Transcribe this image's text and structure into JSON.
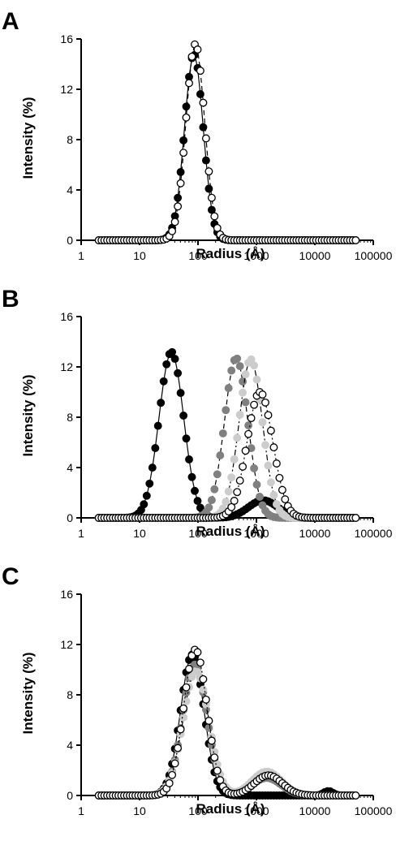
{
  "figure": {
    "panels": [
      "A",
      "B",
      "C"
    ]
  },
  "chart_data": [
    {
      "panel": "A",
      "type": "line",
      "xlabel": "Radius (Å)",
      "ylabel": "Intensity (%)",
      "xscale": "log",
      "xlim": [
        1,
        100000
      ],
      "ylim": [
        0,
        16
      ],
      "xticks": [
        "1",
        "10",
        "100",
        "1000",
        "10000",
        "100000"
      ],
      "yticks": [
        "0",
        "4",
        "8",
        "12",
        "16"
      ],
      "series": [
        {
          "style": "black filled circles, solid line",
          "color": "#000000",
          "peaks": [
            {
              "center": 85,
              "height": 14.8,
              "width": 0.16
            }
          ]
        },
        {
          "style": "open circles, dashed line",
          "color": "#ffffff",
          "peaks": [
            {
              "center": 90,
              "height": 15.6,
              "width": 0.16
            }
          ]
        }
      ]
    },
    {
      "panel": "B",
      "type": "line",
      "xlabel": "Radius (Å)",
      "ylabel": "Intensity (%)",
      "xscale": "log",
      "xlim": [
        1,
        100000
      ],
      "ylim": [
        0,
        16
      ],
      "xticks": [
        "1",
        "10",
        "100",
        "1000",
        "10000",
        "100000"
      ],
      "yticks": [
        "0",
        "4",
        "8",
        "12",
        "16"
      ],
      "series": [
        {
          "style": "black filled circles, solid line",
          "color": "#000000",
          "peaks": [
            {
              "center": 35,
              "height": 13.2,
              "width": 0.21
            },
            {
              "center": 1300,
              "height": 1.4,
              "width": 0.25
            }
          ]
        },
        {
          "style": "dark grey filled circles, dashed line",
          "color": "#808080",
          "peaks": [
            {
              "center": 450,
              "height": 12.7,
              "width": 0.2
            }
          ]
        },
        {
          "style": "light grey filled circles, dash-dot line",
          "color": "#cccccc",
          "peaks": [
            {
              "center": 800,
              "height": 12.6,
              "width": 0.2
            }
          ]
        },
        {
          "style": "open circles, dotted line",
          "color": "#ffffff",
          "peaks": [
            {
              "center": 1150,
              "height": 10.0,
              "width": 0.22
            }
          ]
        }
      ]
    },
    {
      "panel": "C",
      "type": "line",
      "xlabel": "Radius (Å)",
      "ylabel": "Intensity (%)",
      "xscale": "log",
      "xlim": [
        1,
        100000
      ],
      "ylim": [
        0,
        16
      ],
      "xticks": [
        "1",
        "10",
        "100",
        "1000",
        "10000",
        "100000"
      ],
      "yticks": [
        "0",
        "4",
        "8",
        "12",
        "16"
      ],
      "series": [
        {
          "style": "black filled circles, solid line",
          "color": "#000000",
          "peaks": [
            {
              "center": 80,
              "height": 11.2,
              "width": 0.2
            },
            {
              "center": 17000,
              "height": 0.35,
              "width": 0.08
            }
          ]
        },
        {
          "style": "dark grey filled circles, dashed line",
          "color": "#808080",
          "peaks": [
            {
              "center": 88,
              "height": 10.4,
              "width": 0.21
            },
            {
              "center": 1500,
              "height": 1.4,
              "width": 0.25
            }
          ]
        },
        {
          "style": "light grey filled circles, dash-dot line",
          "color": "#cccccc",
          "peaks": [
            {
              "center": 92,
              "height": 9.9,
              "width": 0.22
            },
            {
              "center": 1500,
              "height": 1.9,
              "width": 0.25
            }
          ]
        },
        {
          "style": "open circles, dotted line",
          "color": "#ffffff",
          "peaks": [
            {
              "center": 90,
              "height": 11.6,
              "width": 0.2
            },
            {
              "center": 1600,
              "height": 1.6,
              "width": 0.24
            }
          ]
        }
      ]
    }
  ]
}
